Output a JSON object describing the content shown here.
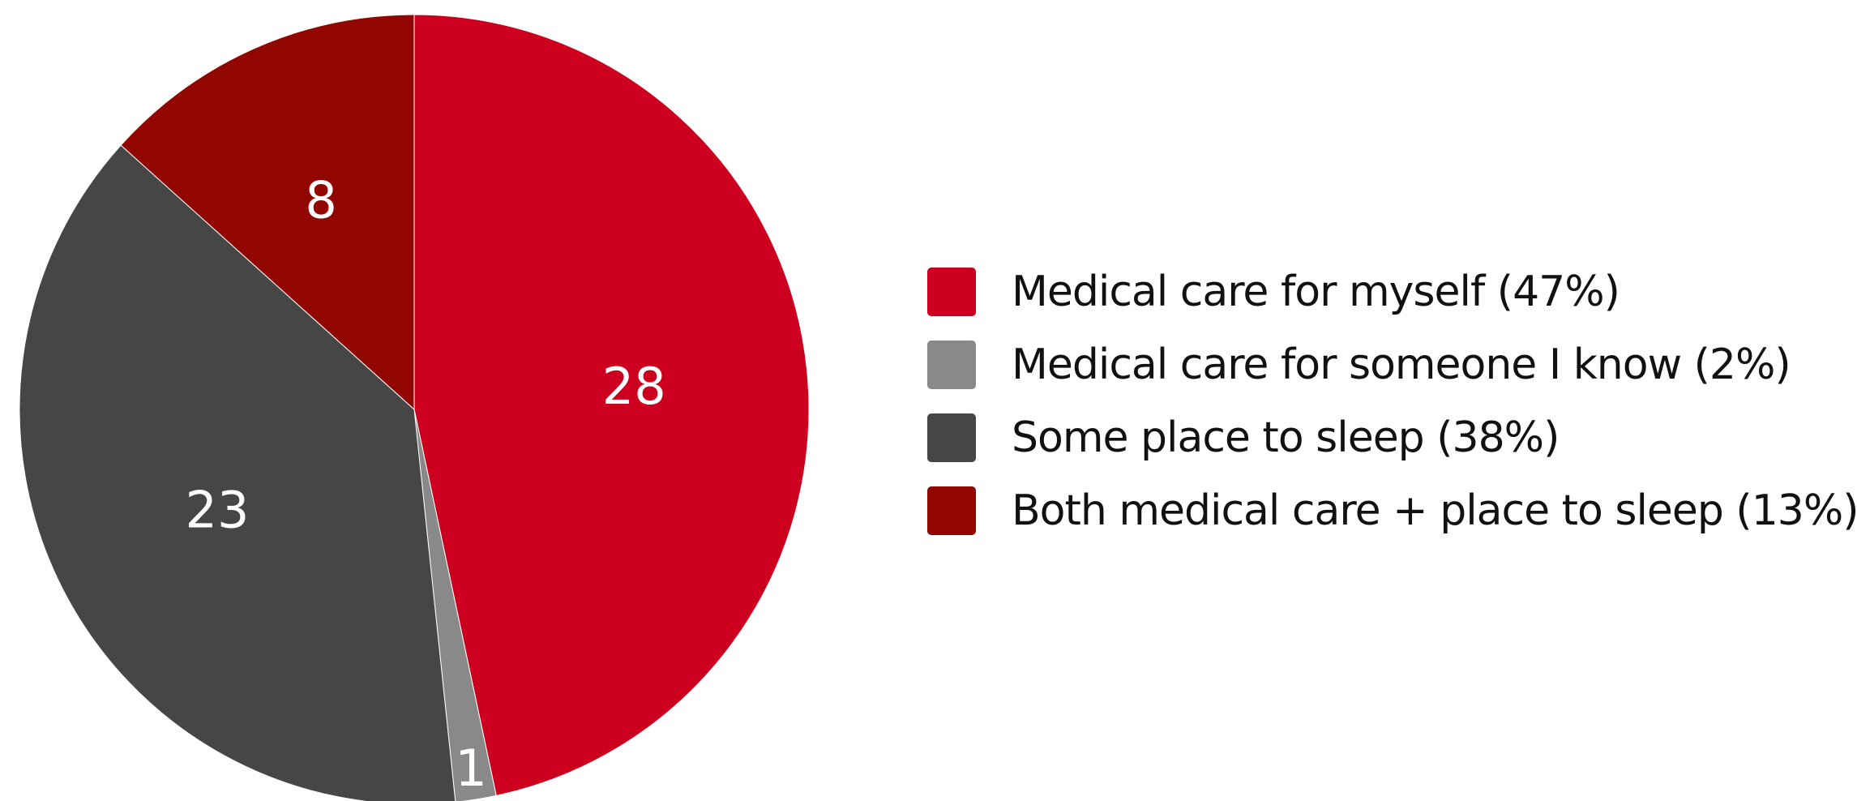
{
  "chart_data": {
    "type": "pie",
    "title": "",
    "slices": [
      {
        "label": "Medical care for myself (47%)",
        "value": 28,
        "value_label": "28",
        "color": "#CC001E"
      },
      {
        "label": "Medical care for someone I know (2%)",
        "value": 1,
        "value_label": "1",
        "color": "#898989"
      },
      {
        "label": "Some place to sleep (38%)",
        "value": 23,
        "value_label": "23",
        "color": "#464646"
      },
      {
        "label": "Both medical care + place to sleep (13%)",
        "value": 8,
        "value_label": "8",
        "color": "#910600"
      }
    ],
    "start_angle": "12 o'clock",
    "direction": "clockwise",
    "legend_position": "right"
  }
}
